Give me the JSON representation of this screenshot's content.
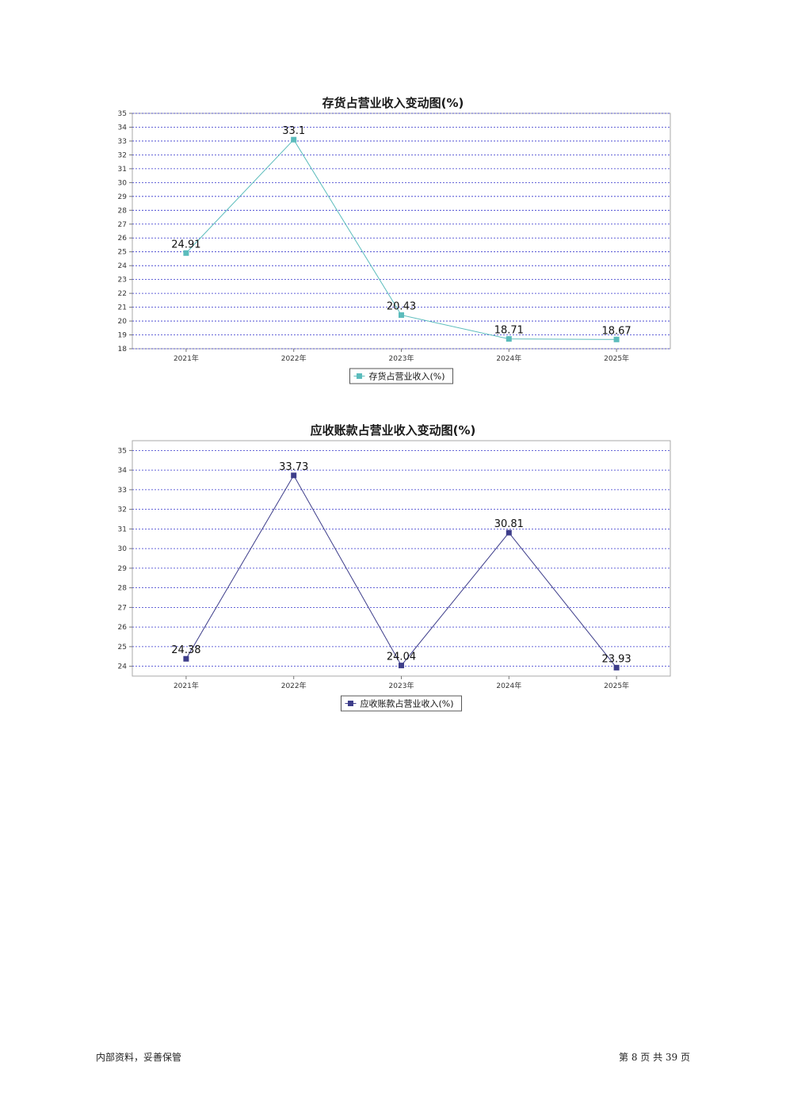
{
  "chart_data": [
    {
      "type": "line",
      "title": "存货占营业收入变动图(%)",
      "categories": [
        "2021年",
        "2022年",
        "2023年",
        "2024年",
        "2025年"
      ],
      "series": [
        {
          "name": "存货占营业收入(%)",
          "values": [
            24.91,
            33.1,
            20.43,
            18.71,
            18.67
          ],
          "color": "#5bbcbc"
        }
      ],
      "value_labels": [
        "24.91",
        "33.1",
        "20.43",
        "18.71",
        "18.67"
      ],
      "ylim": [
        18,
        35
      ],
      "yticks": [
        "35",
        "34",
        "33",
        "32",
        "31",
        "30",
        "29",
        "28",
        "27",
        "26",
        "25",
        "24",
        "23",
        "22",
        "21",
        "20",
        "19",
        "18"
      ],
      "grid": true,
      "legend": "bottom-center"
    },
    {
      "type": "line",
      "title": "应收账款占营业收入变动图(%)",
      "categories": [
        "2021年",
        "2022年",
        "2023年",
        "2024年",
        "2025年"
      ],
      "series": [
        {
          "name": "应收账款占营业收入(%)",
          "values": [
            24.38,
            33.73,
            24.04,
            30.81,
            23.93
          ],
          "color": "#3d3d8a"
        }
      ],
      "value_labels": [
        "24.38",
        "33.73",
        "24.04",
        "30.81",
        "23.93"
      ],
      "ylim": [
        23.5,
        35.5
      ],
      "yticks": [
        "35",
        "34",
        "33",
        "32",
        "31",
        "30",
        "29",
        "28",
        "27",
        "26",
        "25",
        "24"
      ],
      "grid": true,
      "legend": "bottom-center"
    }
  ],
  "footer": {
    "left": "内部资料，妥善保管",
    "right": "第 8 页 共 39 页"
  }
}
